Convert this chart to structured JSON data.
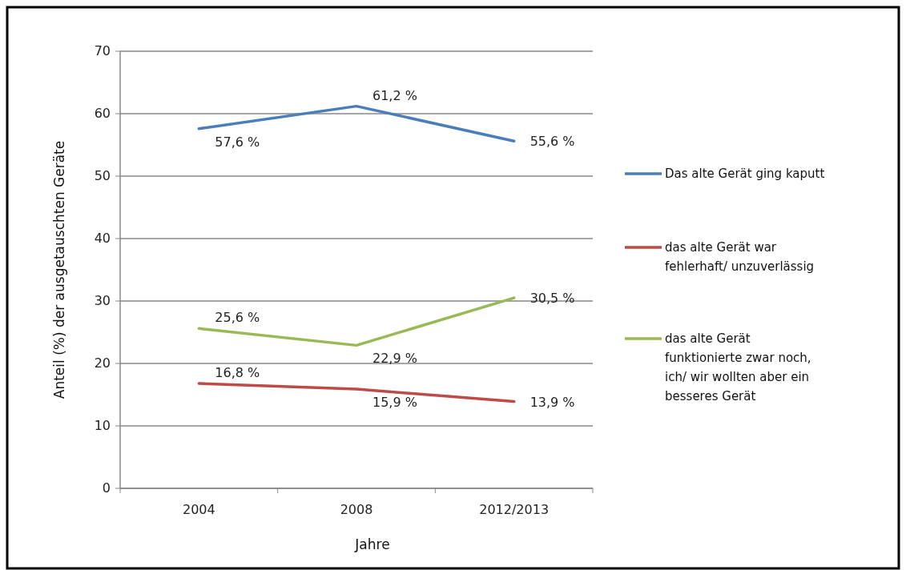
{
  "chart_data": {
    "type": "line",
    "xlabel": "Jahre",
    "ylabel": "Anteil (%) der ausgetauschten Geräte",
    "categories": [
      "2004",
      "2008",
      "2012/2013"
    ],
    "ylim": [
      0,
      70
    ],
    "yticks": [
      0,
      10,
      20,
      30,
      40,
      50,
      60,
      70
    ],
    "grid": "y",
    "legend": "right",
    "marker": "none",
    "line_style": "solid",
    "series": [
      {
        "name": "Das alte Gerät ging kaputt",
        "color": "#4a7ebb",
        "values": [
          57.6,
          61.2,
          55.6
        ],
        "value_labels": [
          "57,6 %",
          "61,2 %",
          "55,6 %"
        ]
      },
      {
        "name": "das alte Gerät war fehlerhaft/ unzuverlässig",
        "color": "#be4b48",
        "values": [
          16.8,
          15.9,
          13.9
        ],
        "value_labels": [
          "16,8 %",
          "15,9 %",
          "13,9 %"
        ]
      },
      {
        "name": "das alte Gerät funktionierte zwar noch, ich/ wir wollten aber ein besseres Gerät",
        "color": "#98b954",
        "values": [
          25.6,
          22.9,
          30.5
        ],
        "value_labels": [
          "25,6 %",
          "22,9 %",
          "30,5 %"
        ]
      }
    ]
  }
}
